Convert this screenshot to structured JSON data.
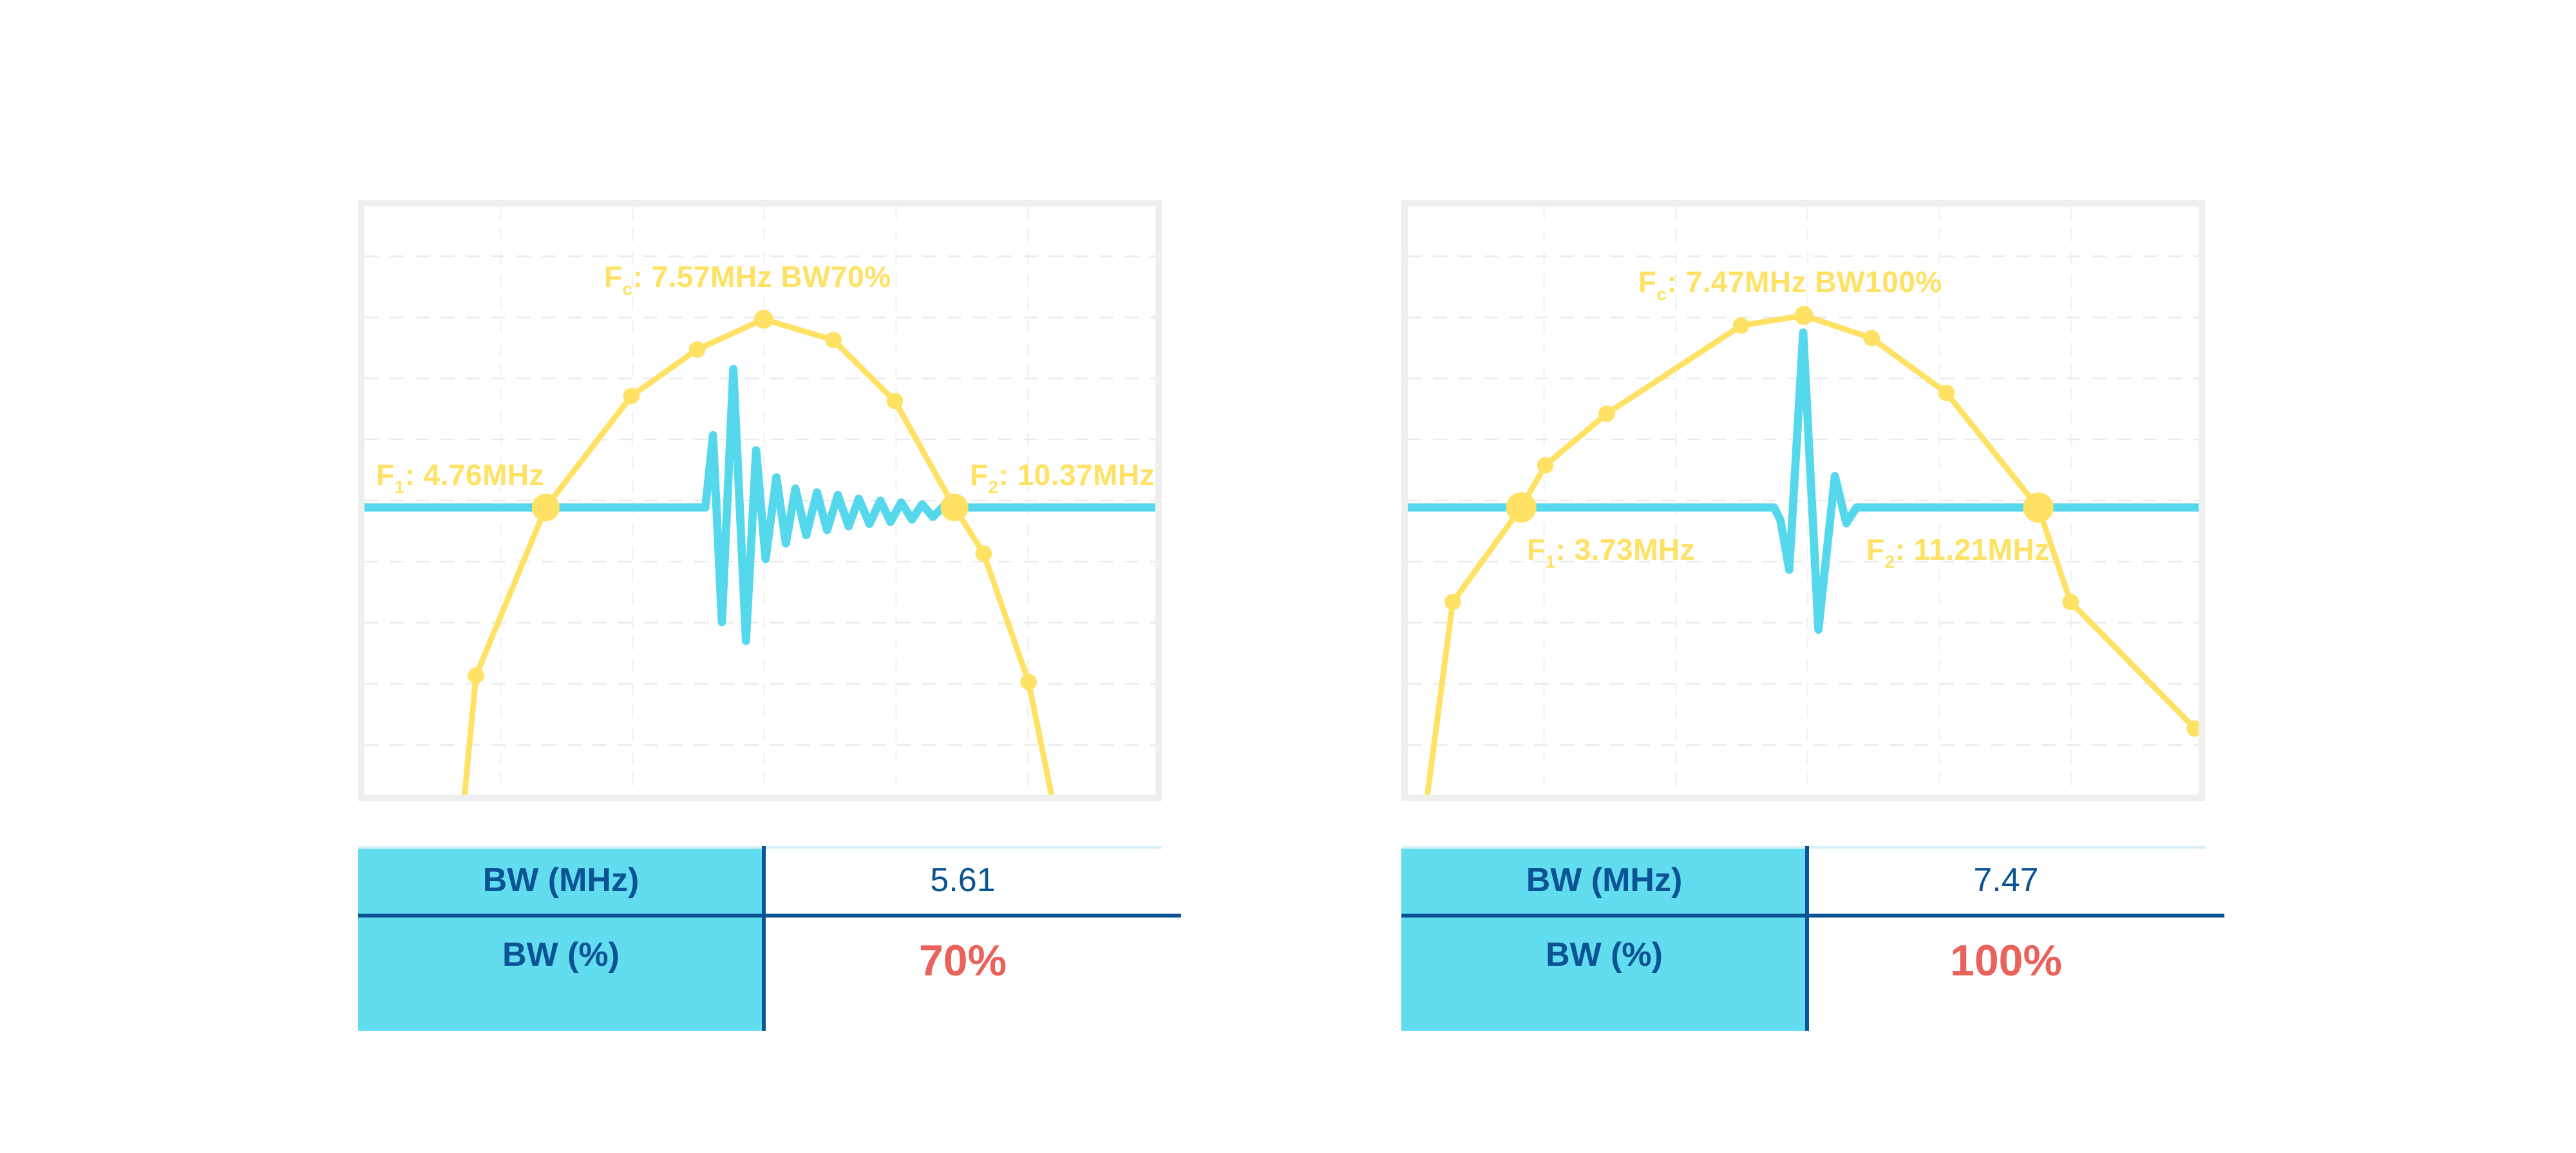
{
  "colors": {
    "yellow": "#FFE164",
    "cyan": "#55D8EC",
    "tablecyan": "#62DCEF",
    "navy": "#0B5394",
    "navytext": "#0A5190",
    "red": "#E9625B",
    "panel_border": "#EFEFEF"
  },
  "panels": [
    {
      "id": "bw70",
      "chart_labels": {
        "fc": {
          "base": "F",
          "sub": "c",
          "text": ": 7.57MHz BW70%"
        },
        "f1": {
          "base": "F",
          "sub": "1",
          "text": ": 4.76MHz"
        },
        "f2": {
          "base": "F",
          "sub": "2",
          "text": ": 10.37MHz"
        }
      },
      "table": {
        "row1_label": "BW (MHz)",
        "row1_value": "5.61",
        "row2_label": "BW (%)",
        "row2_value": "70%"
      }
    },
    {
      "id": "bw100",
      "chart_labels": {
        "fc": {
          "base": "F",
          "sub": "c",
          "text": ": 7.47MHz BW100%"
        },
        "f1": {
          "base": "F",
          "sub": "1",
          "text": ": 3.73MHz"
        },
        "f2": {
          "base": "F",
          "sub": "2",
          "text": ": 11.21MHz"
        }
      },
      "table": {
        "row1_label": "BW (MHz)",
        "row1_value": "7.47",
        "row2_label": "BW (%)",
        "row2_value": "100%"
      }
    }
  ],
  "chart_data": [
    {
      "type": "line",
      "title": "Fc: 7.57MHz BW70%",
      "key_values": {
        "fc_mhz": 7.57,
        "f1_mhz": 4.76,
        "f2_mhz": 10.37,
        "bw_mhz": 5.61,
        "bw_pct": 70
      },
      "annotations": [
        "Fc: 7.57MHz BW70%",
        "F1: 4.76MHz",
        "F2: 10.37MHz"
      ],
      "axes": "none visible; pixel coords, canvas 1248x934, zero-amplitude baseline at y=478",
      "grid": "light dashed",
      "legend": "none",
      "series": [
        {
          "name": "frequency-spectrum",
          "color": "#FFE164",
          "points": [
            [
              158,
              934
            ],
            [
              176,
              745
            ],
            [
              286,
              478
            ],
            [
              421,
              301
            ],
            [
              525,
              227
            ],
            [
              630,
              179
            ],
            [
              740,
              212
            ],
            [
              837,
              309
            ],
            [
              931,
              478
            ],
            [
              977,
              551
            ],
            [
              1048,
              755
            ],
            [
              1084,
              934
            ]
          ]
        },
        {
          "name": "pulse-echo-waveform",
          "color": "#55D8EC",
          "points": [
            [
              0,
              478
            ],
            [
              522,
              478
            ],
            [
              538,
              478
            ],
            [
              550,
              363
            ],
            [
              564,
              660
            ],
            [
              582,
              258
            ],
            [
              602,
              690
            ],
            [
              618,
              387
            ],
            [
              633,
              560
            ],
            [
              650,
              430
            ],
            [
              665,
              535
            ],
            [
              680,
              448
            ],
            [
              697,
              522
            ],
            [
              714,
              454
            ],
            [
              730,
              514
            ],
            [
              747,
              458
            ],
            [
              764,
              508
            ],
            [
              780,
              464
            ],
            [
              797,
              504
            ],
            [
              814,
              467
            ],
            [
              830,
              501
            ],
            [
              847,
              470
            ],
            [
              864,
              497
            ],
            [
              880,
              473
            ],
            [
              897,
              493
            ],
            [
              914,
              476
            ],
            [
              930,
              478
            ],
            [
              1248,
              478
            ]
          ]
        }
      ],
      "markers": [
        [
          176,
          745,
          13
        ],
        [
          286,
          478,
          22
        ],
        [
          421,
          301,
          13
        ],
        [
          525,
          227,
          13
        ],
        [
          630,
          179,
          15
        ],
        [
          740,
          212,
          13
        ],
        [
          837,
          309,
          13
        ],
        [
          931,
          478,
          22
        ],
        [
          977,
          551,
          13
        ],
        [
          1048,
          755,
          13
        ]
      ]
    },
    {
      "type": "line",
      "title": "Fc: 7.47MHz BW100%",
      "key_values": {
        "fc_mhz": 7.47,
        "f1_mhz": 3.73,
        "f2_mhz": 11.21,
        "bw_mhz": 7.47,
        "bw_pct": 100
      },
      "annotations": [
        "Fc: 7.47MHz BW100%",
        "F1: 3.73MHz",
        "F2: 11.21MHz"
      ],
      "axes": "none visible; pixel coords, canvas 1248x934, zero-amplitude baseline at y=478",
      "grid": "light dashed",
      "legend": "none",
      "series": [
        {
          "name": "frequency-spectrum",
          "color": "#FFE164",
          "points": [
            [
              31,
              934
            ],
            [
              71,
              628
            ],
            [
              179,
              478
            ],
            [
              217,
              411
            ],
            [
              314,
              329
            ],
            [
              526,
              189
            ],
            [
              625,
              173
            ],
            [
              732,
              209
            ],
            [
              850,
              296
            ],
            [
              995,
              478
            ],
            [
              1046,
              628
            ],
            [
              1242,
              829
            ]
          ]
        },
        {
          "name": "pulse-echo-waveform",
          "color": "#55D8EC",
          "points": [
            [
              0,
              478
            ],
            [
              562,
              478
            ],
            [
              578,
              478
            ],
            [
              588,
              498
            ],
            [
              602,
              577
            ],
            [
              624,
              200
            ],
            [
              648,
              672
            ],
            [
              674,
              428
            ],
            [
              692,
              503
            ],
            [
              708,
              478
            ],
            [
              1248,
              478
            ]
          ]
        }
      ],
      "markers": [
        [
          71,
          628,
          13
        ],
        [
          179,
          478,
          24
        ],
        [
          217,
          411,
          13
        ],
        [
          314,
          329,
          13
        ],
        [
          526,
          189,
          13
        ],
        [
          625,
          173,
          15
        ],
        [
          732,
          209,
          13
        ],
        [
          850,
          296,
          13
        ],
        [
          995,
          478,
          24
        ],
        [
          1046,
          628,
          13
        ],
        [
          1242,
          829,
          13
        ]
      ]
    }
  ]
}
